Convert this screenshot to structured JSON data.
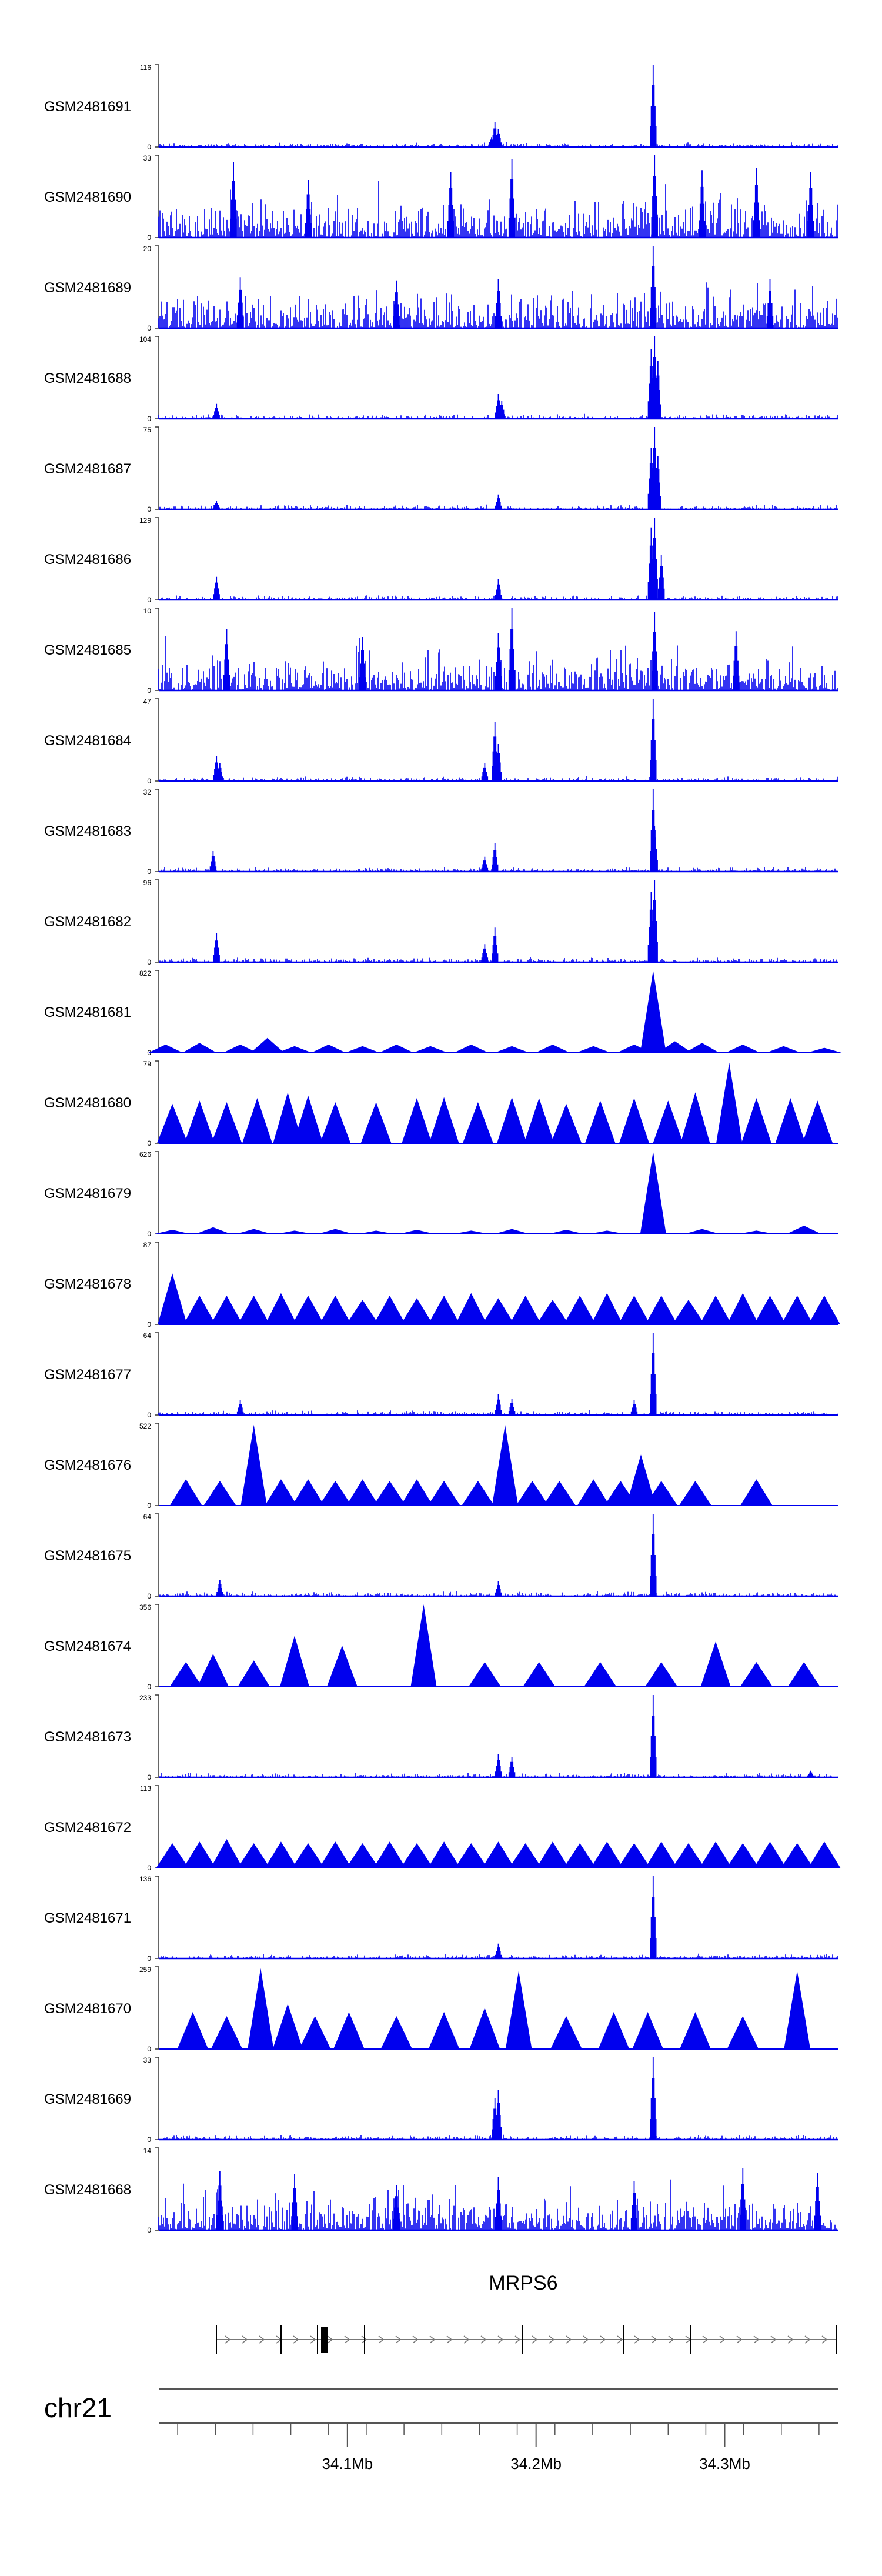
{
  "tracks": [
    {
      "name": "GSM2481691",
      "ymax": "116",
      "ymin": "0",
      "style": "peaks",
      "peaks": [
        [
          0.49,
          0.12
        ],
        [
          0.495,
          0.3
        ],
        [
          0.5,
          0.22
        ],
        [
          0.728,
          1.0
        ]
      ]
    },
    {
      "name": "GSM2481690",
      "ymax": "33",
      "ymin": "0",
      "style": "noise",
      "peaks": [
        [
          0.11,
          0.92
        ],
        [
          0.22,
          0.7
        ],
        [
          0.43,
          0.8
        ],
        [
          0.52,
          0.95
        ],
        [
          0.73,
          1.0
        ],
        [
          0.8,
          0.82
        ],
        [
          0.88,
          0.85
        ],
        [
          0.96,
          0.8
        ]
      ]
    },
    {
      "name": "GSM2481689",
      "ymax": "20",
      "ymin": "0",
      "style": "noise",
      "peaks": [
        [
          0.12,
          0.62
        ],
        [
          0.35,
          0.58
        ],
        [
          0.5,
          0.6
        ],
        [
          0.728,
          1.0
        ],
        [
          0.9,
          0.6
        ]
      ]
    },
    {
      "name": "GSM2481688",
      "ymax": "104",
      "ymin": "0",
      "style": "peaks",
      "peaks": [
        [
          0.085,
          0.18
        ],
        [
          0.5,
          0.3
        ],
        [
          0.505,
          0.22
        ],
        [
          0.725,
          0.85
        ],
        [
          0.73,
          1.0
        ],
        [
          0.735,
          0.7
        ]
      ]
    },
    {
      "name": "GSM2481687",
      "ymax": "75",
      "ymin": "0",
      "style": "peaks",
      "peaks": [
        [
          0.085,
          0.1
        ],
        [
          0.5,
          0.18
        ],
        [
          0.725,
          0.75
        ],
        [
          0.73,
          1.0
        ],
        [
          0.735,
          0.65
        ]
      ]
    },
    {
      "name": "GSM2481686",
      "ymax": "129",
      "ymin": "0",
      "style": "peaks",
      "peaks": [
        [
          0.085,
          0.28
        ],
        [
          0.5,
          0.25
        ],
        [
          0.725,
          0.88
        ],
        [
          0.73,
          1.0
        ],
        [
          0.74,
          0.55
        ]
      ]
    },
    {
      "name": "GSM2481685",
      "ymax": "10",
      "ymin": "0",
      "style": "noise",
      "peaks": [
        [
          0.1,
          0.75
        ],
        [
          0.3,
          0.65
        ],
        [
          0.5,
          0.7
        ],
        [
          0.52,
          1.0
        ],
        [
          0.73,
          0.95
        ],
        [
          0.85,
          0.72
        ]
      ]
    },
    {
      "name": "GSM2481684",
      "ymax": "47",
      "ymin": "0",
      "style": "peaks",
      "peaks": [
        [
          0.085,
          0.3
        ],
        [
          0.09,
          0.22
        ],
        [
          0.48,
          0.22
        ],
        [
          0.495,
          0.72
        ],
        [
          0.5,
          0.45
        ],
        [
          0.728,
          1.0
        ]
      ]
    },
    {
      "name": "GSM2481683",
      "ymax": "32",
      "ymin": "0",
      "style": "peaks",
      "peaks": [
        [
          0.08,
          0.25
        ],
        [
          0.48,
          0.18
        ],
        [
          0.495,
          0.35
        ],
        [
          0.728,
          1.0
        ],
        [
          0.73,
          0.55
        ]
      ]
    },
    {
      "name": "GSM2481682",
      "ymax": "96",
      "ymin": "0",
      "style": "peaks",
      "peaks": [
        [
          0.085,
          0.35
        ],
        [
          0.48,
          0.22
        ],
        [
          0.495,
          0.42
        ],
        [
          0.725,
          0.85
        ],
        [
          0.73,
          1.0
        ]
      ]
    },
    {
      "name": "GSM2481681",
      "ymax": "822",
      "ymin": "0",
      "style": "tri",
      "tri": [
        [
          0.01,
          0.1
        ],
        [
          0.06,
          0.12
        ],
        [
          0.12,
          0.1
        ],
        [
          0.16,
          0.18
        ],
        [
          0.2,
          0.08
        ],
        [
          0.25,
          0.1
        ],
        [
          0.3,
          0.08
        ],
        [
          0.35,
          0.1
        ],
        [
          0.4,
          0.08
        ],
        [
          0.46,
          0.1
        ],
        [
          0.52,
          0.08
        ],
        [
          0.58,
          0.1
        ],
        [
          0.64,
          0.08
        ],
        [
          0.7,
          0.1
        ],
        [
          0.728,
          1.0
        ],
        [
          0.76,
          0.14
        ],
        [
          0.8,
          0.12
        ],
        [
          0.86,
          0.1
        ],
        [
          0.92,
          0.08
        ],
        [
          0.98,
          0.06
        ]
      ]
    },
    {
      "name": "GSM2481680",
      "ymax": "79",
      "ymin": "0",
      "style": "tri",
      "tri": [
        [
          0.02,
          0.48
        ],
        [
          0.06,
          0.52
        ],
        [
          0.1,
          0.5
        ],
        [
          0.145,
          0.55
        ],
        [
          0.19,
          0.62
        ],
        [
          0.22,
          0.58
        ],
        [
          0.26,
          0.5
        ],
        [
          0.32,
          0.5
        ],
        [
          0.38,
          0.55
        ],
        [
          0.42,
          0.56
        ],
        [
          0.47,
          0.5
        ],
        [
          0.52,
          0.56
        ],
        [
          0.56,
          0.55
        ],
        [
          0.6,
          0.48
        ],
        [
          0.65,
          0.52
        ],
        [
          0.7,
          0.55
        ],
        [
          0.75,
          0.52
        ],
        [
          0.79,
          0.62
        ],
        [
          0.84,
          0.98
        ],
        [
          0.88,
          0.55
        ],
        [
          0.93,
          0.55
        ],
        [
          0.97,
          0.52
        ]
      ]
    },
    {
      "name": "GSM2481679",
      "ymax": "626",
      "ymin": "0",
      "style": "tri",
      "tri": [
        [
          0.02,
          0.05
        ],
        [
          0.08,
          0.08
        ],
        [
          0.14,
          0.06
        ],
        [
          0.2,
          0.04
        ],
        [
          0.26,
          0.06
        ],
        [
          0.32,
          0.04
        ],
        [
          0.38,
          0.05
        ],
        [
          0.46,
          0.04
        ],
        [
          0.52,
          0.06
        ],
        [
          0.6,
          0.05
        ],
        [
          0.66,
          0.04
        ],
        [
          0.728,
          1.0
        ],
        [
          0.8,
          0.06
        ],
        [
          0.88,
          0.04
        ],
        [
          0.95,
          0.1
        ]
      ]
    },
    {
      "name": "GSM2481678",
      "ymax": "87",
      "ymin": "0",
      "style": "tri",
      "tri": [
        [
          0.02,
          0.62
        ],
        [
          0.06,
          0.35
        ],
        [
          0.1,
          0.35
        ],
        [
          0.14,
          0.35
        ],
        [
          0.18,
          0.38
        ],
        [
          0.22,
          0.35
        ],
        [
          0.26,
          0.35
        ],
        [
          0.3,
          0.3
        ],
        [
          0.34,
          0.35
        ],
        [
          0.38,
          0.32
        ],
        [
          0.42,
          0.35
        ],
        [
          0.46,
          0.38
        ],
        [
          0.5,
          0.32
        ],
        [
          0.54,
          0.35
        ],
        [
          0.58,
          0.3
        ],
        [
          0.62,
          0.35
        ],
        [
          0.66,
          0.38
        ],
        [
          0.7,
          0.35
        ],
        [
          0.74,
          0.35
        ],
        [
          0.78,
          0.3
        ],
        [
          0.82,
          0.35
        ],
        [
          0.86,
          0.38
        ],
        [
          0.9,
          0.35
        ],
        [
          0.94,
          0.35
        ],
        [
          0.98,
          0.35
        ]
      ]
    },
    {
      "name": "GSM2481677",
      "ymax": "64",
      "ymin": "0",
      "style": "peaks",
      "peaks": [
        [
          0.12,
          0.18
        ],
        [
          0.5,
          0.25
        ],
        [
          0.52,
          0.2
        ],
        [
          0.7,
          0.18
        ],
        [
          0.728,
          1.0
        ]
      ]
    },
    {
      "name": "GSM2481676",
      "ymax": "522",
      "ymin": "0",
      "style": "tri",
      "tri": [
        [
          0.04,
          0.32
        ],
        [
          0.09,
          0.3
        ],
        [
          0.14,
          0.98
        ],
        [
          0.18,
          0.32
        ],
        [
          0.22,
          0.32
        ],
        [
          0.26,
          0.3
        ],
        [
          0.3,
          0.32
        ],
        [
          0.34,
          0.3
        ],
        [
          0.38,
          0.32
        ],
        [
          0.42,
          0.3
        ],
        [
          0.47,
          0.3
        ],
        [
          0.51,
          0.98
        ],
        [
          0.55,
          0.3
        ],
        [
          0.59,
          0.3
        ],
        [
          0.64,
          0.32
        ],
        [
          0.68,
          0.3
        ],
        [
          0.71,
          0.62
        ],
        [
          0.74,
          0.3
        ],
        [
          0.79,
          0.3
        ],
        [
          0.88,
          0.32
        ]
      ]
    },
    {
      "name": "GSM2481675",
      "ymax": "64",
      "ymin": "0",
      "style": "peaks",
      "peaks": [
        [
          0.09,
          0.2
        ],
        [
          0.5,
          0.18
        ],
        [
          0.728,
          1.0
        ]
      ]
    },
    {
      "name": "GSM2481674",
      "ymax": "356",
      "ymin": "0",
      "style": "tri",
      "tri": [
        [
          0.04,
          0.3
        ],
        [
          0.08,
          0.4
        ],
        [
          0.14,
          0.32
        ],
        [
          0.2,
          0.62
        ],
        [
          0.27,
          0.5
        ],
        [
          0.39,
          1.0
        ],
        [
          0.48,
          0.3
        ],
        [
          0.56,
          0.3
        ],
        [
          0.65,
          0.3
        ],
        [
          0.74,
          0.3
        ],
        [
          0.82,
          0.55
        ],
        [
          0.88,
          0.3
        ],
        [
          0.95,
          0.3
        ]
      ]
    },
    {
      "name": "GSM2481673",
      "ymax": "233",
      "ymin": "0",
      "style": "peaks",
      "peaks": [
        [
          0.5,
          0.28
        ],
        [
          0.52,
          0.25
        ],
        [
          0.728,
          1.0
        ],
        [
          0.96,
          0.08
        ]
      ]
    },
    {
      "name": "GSM2481672",
      "ymax": "113",
      "ymin": "0",
      "style": "tri",
      "tri": [
        [
          0.02,
          0.3
        ],
        [
          0.06,
          0.32
        ],
        [
          0.1,
          0.35
        ],
        [
          0.14,
          0.3
        ],
        [
          0.18,
          0.32
        ],
        [
          0.22,
          0.3
        ],
        [
          0.26,
          0.32
        ],
        [
          0.3,
          0.3
        ],
        [
          0.34,
          0.32
        ],
        [
          0.38,
          0.3
        ],
        [
          0.42,
          0.32
        ],
        [
          0.46,
          0.3
        ],
        [
          0.5,
          0.32
        ],
        [
          0.54,
          0.3
        ],
        [
          0.58,
          0.32
        ],
        [
          0.62,
          0.3
        ],
        [
          0.66,
          0.32
        ],
        [
          0.7,
          0.3
        ],
        [
          0.74,
          0.32
        ],
        [
          0.78,
          0.3
        ],
        [
          0.82,
          0.32
        ],
        [
          0.86,
          0.3
        ],
        [
          0.9,
          0.32
        ],
        [
          0.94,
          0.3
        ],
        [
          0.98,
          0.32
        ]
      ]
    },
    {
      "name": "GSM2481671",
      "ymax": "136",
      "ymin": "0",
      "style": "peaks",
      "peaks": [
        [
          0.5,
          0.18
        ],
        [
          0.728,
          1.0
        ]
      ]
    },
    {
      "name": "GSM2481670",
      "ymax": "259",
      "ymin": "0",
      "style": "tri",
      "tri": [
        [
          0.05,
          0.45
        ],
        [
          0.1,
          0.4
        ],
        [
          0.15,
          0.98
        ],
        [
          0.19,
          0.55
        ],
        [
          0.23,
          0.4
        ],
        [
          0.28,
          0.45
        ],
        [
          0.35,
          0.4
        ],
        [
          0.42,
          0.45
        ],
        [
          0.48,
          0.5
        ],
        [
          0.53,
          0.95
        ],
        [
          0.6,
          0.4
        ],
        [
          0.67,
          0.45
        ],
        [
          0.72,
          0.45
        ],
        [
          0.79,
          0.45
        ],
        [
          0.86,
          0.4
        ],
        [
          0.94,
          0.95
        ]
      ]
    },
    {
      "name": "GSM2481669",
      "ymax": "33",
      "ymin": "0",
      "style": "peaks",
      "peaks": [
        [
          0.495,
          0.5
        ],
        [
          0.5,
          0.6
        ],
        [
          0.728,
          1.0
        ]
      ]
    },
    {
      "name": "GSM2481668",
      "ymax": "14",
      "ymin": "0",
      "style": "noise",
      "peaks": [
        [
          0.09,
          0.72
        ],
        [
          0.2,
          0.68
        ],
        [
          0.35,
          0.55
        ],
        [
          0.5,
          0.65
        ],
        [
          0.7,
          0.6
        ],
        [
          0.86,
          0.75
        ],
        [
          0.97,
          0.7
        ]
      ]
    }
  ],
  "gene": {
    "name": "MRPS6"
  },
  "axis": {
    "chrom": "chr21",
    "ticks": [
      {
        "label": "34.1Mb",
        "x": 34.1
      },
      {
        "label": "34.2Mb",
        "x": 34.2
      },
      {
        "label": "34.3Mb",
        "x": 34.3
      }
    ]
  },
  "colors": {
    "signal": "#0000ee",
    "axis": "#555555",
    "gene": "#000000"
  }
}
